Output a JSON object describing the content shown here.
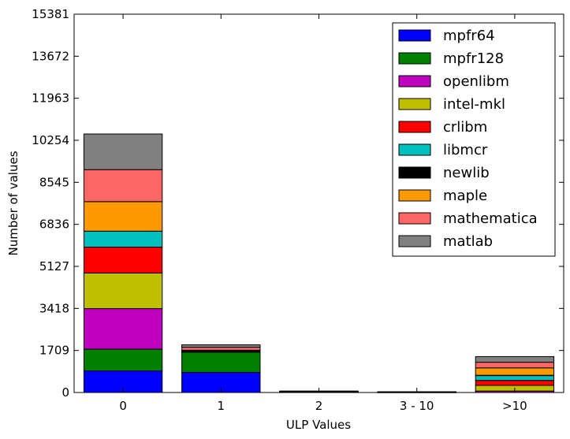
{
  "chart_data": {
    "type": "bar",
    "stacked": true,
    "categories": [
      "0",
      "1",
      "2",
      "3 - 10",
      ">10"
    ],
    "xlabel": "ULP Values",
    "ylabel": "Number of values",
    "ylim": [
      0,
      15381
    ],
    "yticks": [
      0,
      1709,
      3418,
      5127,
      6836,
      8545,
      10254,
      11963,
      13672,
      15381
    ],
    "legend_position": "top-right",
    "series": [
      {
        "name": "mpfr64",
        "color": "#0000ff",
        "values": [
          880,
          820,
          15,
          8,
          0
        ]
      },
      {
        "name": "mpfr128",
        "color": "#008000",
        "values": [
          880,
          820,
          15,
          8,
          0
        ]
      },
      {
        "name": "openlibm",
        "color": "#bf00bf",
        "values": [
          1650,
          0,
          0,
          0,
          60
        ]
      },
      {
        "name": "intel-mkl",
        "color": "#bfbf00",
        "values": [
          1450,
          0,
          0,
          0,
          230
        ]
      },
      {
        "name": "crlibm",
        "color": "#ff0000",
        "values": [
          1050,
          0,
          0,
          0,
          200
        ]
      },
      {
        "name": "libmcr",
        "color": "#00bfbf",
        "values": [
          650,
          0,
          0,
          0,
          200
        ]
      },
      {
        "name": "newlib",
        "color": "#000000",
        "values": [
          0,
          80,
          10,
          5,
          10
        ]
      },
      {
        "name": "maple",
        "color": "#ff9900",
        "values": [
          1200,
          0,
          0,
          0,
          300
        ]
      },
      {
        "name": "mathematica",
        "color": "#ff6666",
        "values": [
          1300,
          120,
          10,
          5,
          230
        ]
      },
      {
        "name": "matlab",
        "color": "#808080",
        "values": [
          1450,
          100,
          10,
          5,
          230
        ]
      }
    ]
  }
}
